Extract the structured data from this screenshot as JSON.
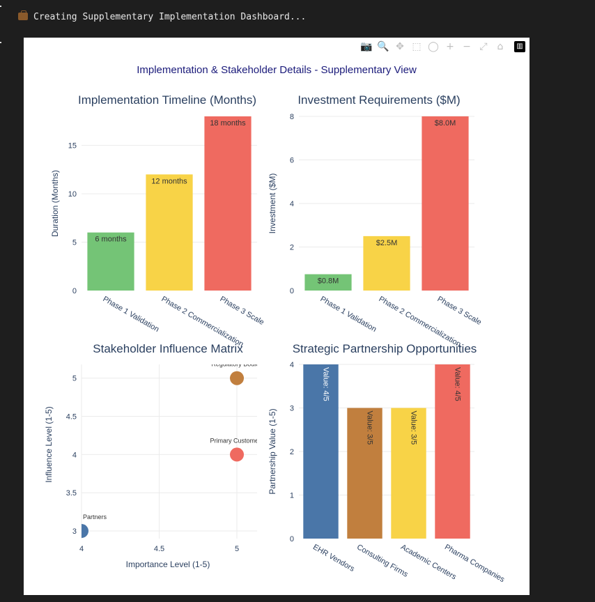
{
  "console": {
    "message": "Creating Supplementary Implementation Dashboard...",
    "icon": "briefcase-icon"
  },
  "modebar": {
    "icons": [
      "camera-icon",
      "zoom-icon",
      "pan-icon",
      "box-select-icon",
      "lasso-icon",
      "zoom-in-icon",
      "zoom-out-icon",
      "autoscale-icon",
      "reset-axes-icon",
      "plotly-logo-icon"
    ],
    "glyphs": [
      "📷",
      "🔍",
      "✥",
      "⬚",
      "◯",
      "+",
      "−",
      "⤢",
      "⌂",
      "▥"
    ]
  },
  "figure_title": "Implementation & Stakeholder Details - Supplementary View",
  "colors": {
    "green": "#74c476",
    "yellow": "#f8d347",
    "red": "#ef6a60",
    "blue": "#4a76a8",
    "brown": "#c17f3e",
    "title_navy": "#1a1a7a",
    "text": "#2a3f5f",
    "grid": "#ebebeb"
  },
  "chart_data": [
    {
      "type": "bar",
      "title": "Implementation Timeline (Months)",
      "ylabel": "Duration (Months)",
      "xlabel": "",
      "ylim": [
        0,
        18
      ],
      "yticks": [
        0,
        5,
        10,
        15
      ],
      "categories": [
        "Phase 1 Validation",
        "Phase 2 Commercialization",
        "Phase 3 Scale"
      ],
      "values": [
        6,
        12,
        18
      ],
      "labels": [
        "6 months",
        "12 months",
        "18 months"
      ],
      "bar_colors": [
        "#74c476",
        "#f8d347",
        "#ef6a60"
      ]
    },
    {
      "type": "bar",
      "title": "Investment Requirements ($M)",
      "ylabel": "Investment ($M)",
      "xlabel": "",
      "ylim": [
        0,
        8
      ],
      "yticks": [
        0,
        2,
        4,
        6,
        8
      ],
      "categories": [
        "Phase 1 Validation",
        "Phase 2 Commercialization",
        "Phase 3 Scale"
      ],
      "values": [
        0.75,
        2.5,
        8.0
      ],
      "labels": [
        "$0.8M",
        "$2.5M",
        "$8.0M"
      ],
      "bar_colors": [
        "#74c476",
        "#f8d347",
        "#ef6a60"
      ]
    },
    {
      "type": "scatter",
      "title": "Stakeholder Influence Matrix",
      "xlabel": "Importance Level (1-5)",
      "ylabel": "Influence Level (1-5)",
      "xlim": [
        4,
        5.13
      ],
      "ylim": [
        2.9,
        5.18
      ],
      "xticks": [
        4,
        4.5,
        5
      ],
      "yticks": [
        3,
        3.5,
        4,
        4.5,
        5
      ],
      "points": [
        {
          "x": 5,
          "y": 5,
          "label": "Regulatory Bodies",
          "color": "#c17f3e"
        },
        {
          "x": 5,
          "y": 4,
          "label": "Primary Customers",
          "color": "#ef6a60"
        },
        {
          "x": 4,
          "y": 3,
          "label": "Strategic Partners",
          "color": "#4a76a8"
        }
      ]
    },
    {
      "type": "bar",
      "title": "Strategic Partnership Opportunities",
      "ylabel": "Partnership Value (1-5)",
      "xlabel": "",
      "ylim": [
        0,
        4
      ],
      "yticks": [
        0,
        1,
        2,
        3,
        4
      ],
      "categories": [
        "EHR Vendors",
        "Consulting Firms",
        "Academic Centers",
        "Pharma Companies"
      ],
      "values": [
        4,
        3,
        3,
        4
      ],
      "labels": [
        "Value: 4/5",
        "Value: 3/5",
        "Value: 3/5",
        "Value: 4/5"
      ],
      "bar_colors": [
        "#4a76a8",
        "#c17f3e",
        "#f8d347",
        "#ef6a60"
      ]
    }
  ]
}
